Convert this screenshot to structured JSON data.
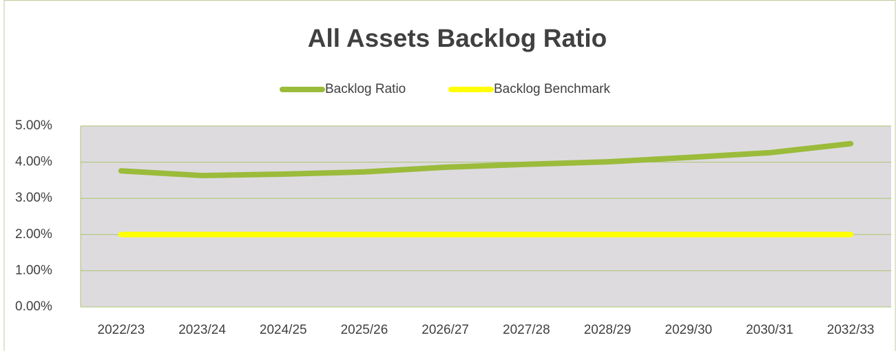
{
  "chart_data": {
    "type": "line",
    "title": "All Assets Backlog Ratio",
    "categories": [
      "2022/23",
      "2023/24",
      "2024/25",
      "2025/26",
      "2026/27",
      "2027/28",
      "2028/29",
      "2029/30",
      "2030/31",
      "2032/33"
    ],
    "series": [
      {
        "name": "Backlog Ratio",
        "color": "#9bbb3b",
        "values": [
          3.76,
          3.63,
          3.67,
          3.73,
          3.86,
          3.94,
          4.01,
          4.13,
          4.26,
          4.51
        ]
      },
      {
        "name": "Backlog Benchmark",
        "color": "#ffff00",
        "values": [
          2,
          2,
          2,
          2,
          2,
          2,
          2,
          2,
          2,
          2
        ]
      }
    ],
    "ylim": [
      0,
      5
    ],
    "yticks": [
      {
        "value": 0,
        "label": "0.00%"
      },
      {
        "value": 1,
        "label": "1.00%"
      },
      {
        "value": 2,
        "label": "2.00%"
      },
      {
        "value": 3,
        "label": "3.00%"
      },
      {
        "value": 4,
        "label": "4.00%"
      },
      {
        "value": 5,
        "label": "5.00%"
      }
    ],
    "grid": true,
    "legend": "top"
  }
}
